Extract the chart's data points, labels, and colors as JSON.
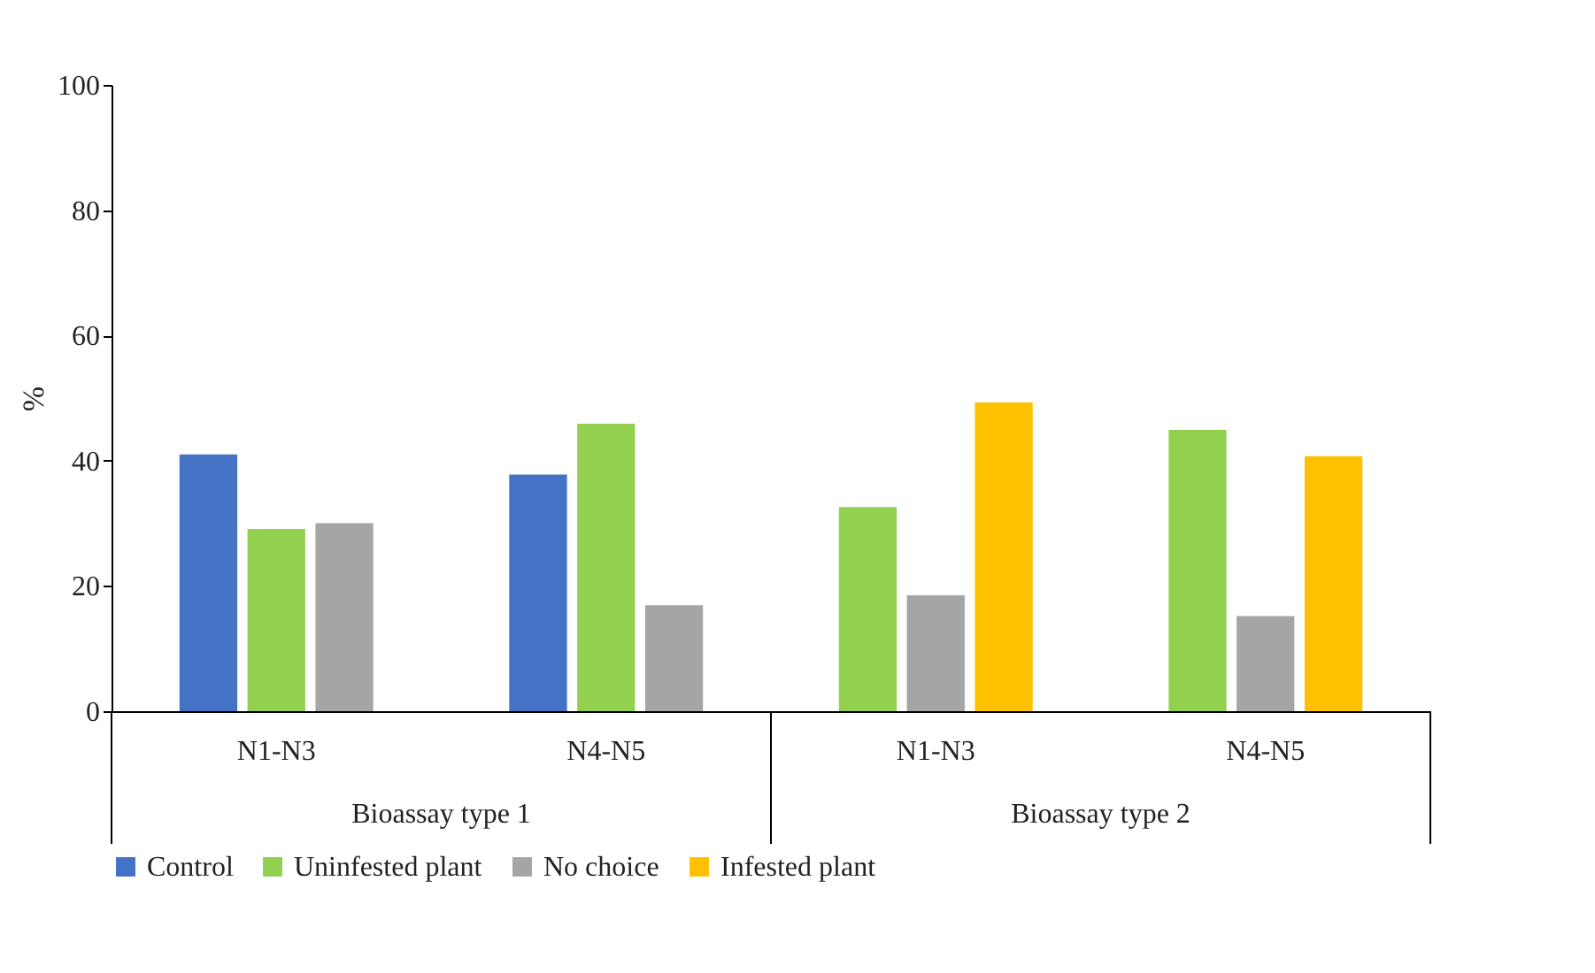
{
  "chart_data": {
    "type": "bar",
    "ylabel": "%",
    "categories": [
      "N1-N3",
      "N4-N5",
      "N1-N3",
      "N4-N5"
    ],
    "series": [
      {
        "name": "Control",
        "color": "#4472c4",
        "values": [
          41,
          37.8,
          null,
          null
        ]
      },
      {
        "name": "Uninfested plant",
        "color": "#92d050",
        "values": [
          29.1,
          45.9,
          32.6,
          44.9
        ]
      },
      {
        "name": "No choice",
        "color": "#a5a5a5",
        "values": [
          30,
          16.9,
          18.5,
          15.2
        ]
      },
      {
        "name": "Infested plant",
        "color": "#ffc000",
        "values": [
          null,
          null,
          49.3,
          40.7
        ]
      }
    ],
    "annotations": [
      "Bioassay type 1",
      "Bioassay type 2"
    ],
    "ylim": [
      0,
      100
    ],
    "yticks": [
      0,
      20,
      40,
      60,
      80,
      100
    ],
    "grid": false,
    "legend": "bottom"
  }
}
